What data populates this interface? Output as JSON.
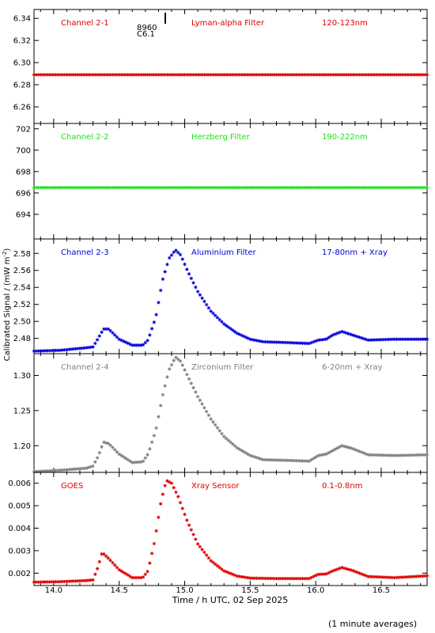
{
  "figure": {
    "y_axis_label": "Calibrated Signal / (mW m",
    "y_axis_label_sup": "-2",
    "y_axis_label_end": ")",
    "x_axis_label": "Time / h UTC, 02 Sep 2025",
    "footer": "(1 minute averages)",
    "flare_marker": {
      "number": "8960",
      "class": "C6.1",
      "time": 14.87
    }
  },
  "chart_data": [
    {
      "type": "scatter",
      "channel": "Channel 2-1",
      "filter": "Lyman-alpha Filter",
      "band": "120-123nm",
      "color": "#e00000",
      "xlim": [
        13.85,
        16.85
      ],
      "ylim": [
        6.245,
        6.348
      ],
      "yticks": [
        6.26,
        6.28,
        6.3,
        6.32,
        6.34
      ],
      "ytick_labels": [
        "6.26",
        "6.28",
        "6.30",
        "6.32",
        "6.34"
      ],
      "series": [
        {
          "values_knots": [
            [
              13.85,
              6.289
            ],
            [
              16.85,
              6.289
            ]
          ]
        }
      ]
    },
    {
      "type": "scatter",
      "channel": "Channel 2-2",
      "filter": "Herzberg Filter",
      "band": "190-222nm",
      "color": "#22dd22",
      "xlim": [
        13.85,
        16.85
      ],
      "ylim": [
        691.7,
        702.5
      ],
      "yticks": [
        694,
        696,
        698,
        700,
        702
      ],
      "ytick_labels": [
        "694",
        "696",
        "698",
        "700",
        "702"
      ],
      "series": [
        {
          "values_knots": [
            [
              13.85,
              696.5
            ],
            [
              16.85,
              696.5
            ]
          ]
        }
      ]
    },
    {
      "type": "scatter",
      "channel": "Channel 2-3",
      "filter": "Aluminium Filter",
      "band": "17-80nm + Xray",
      "color": "#0000dd",
      "xlim": [
        13.85,
        16.85
      ],
      "ylim": [
        2.462,
        2.597
      ],
      "yticks": [
        2.48,
        2.5,
        2.52,
        2.54,
        2.56,
        2.58
      ],
      "ytick_labels": [
        "2.48",
        "2.50",
        "2.52",
        "2.54",
        "2.56",
        "2.58"
      ],
      "series": [
        {
          "values_knots": [
            [
              13.85,
              2.465
            ],
            [
              14.05,
              2.466
            ],
            [
              14.25,
              2.469
            ],
            [
              14.3,
              2.47
            ],
            [
              14.34,
              2.48
            ],
            [
              14.38,
              2.491
            ],
            [
              14.42,
              2.491
            ],
            [
              14.5,
              2.479
            ],
            [
              14.6,
              2.472
            ],
            [
              14.68,
              2.472
            ],
            [
              14.72,
              2.478
            ],
            [
              14.78,
              2.505
            ],
            [
              14.83,
              2.548
            ],
            [
              14.88,
              2.574
            ],
            [
              14.93,
              2.584
            ],
            [
              14.97,
              2.578
            ],
            [
              15.02,
              2.56
            ],
            [
              15.1,
              2.535
            ],
            [
              15.2,
              2.512
            ],
            [
              15.3,
              2.497
            ],
            [
              15.4,
              2.486
            ],
            [
              15.5,
              2.479
            ],
            [
              15.6,
              2.476
            ],
            [
              15.8,
              2.475
            ],
            [
              15.95,
              2.474
            ],
            [
              16.02,
              2.478
            ],
            [
              16.08,
              2.479
            ],
            [
              16.13,
              2.484
            ],
            [
              16.2,
              2.488
            ],
            [
              16.28,
              2.484
            ],
            [
              16.4,
              2.478
            ],
            [
              16.6,
              2.479
            ],
            [
              16.85,
              2.479
            ]
          ]
        }
      ]
    },
    {
      "type": "scatter",
      "channel": "Channel 2-4",
      "filter": "Zirconium Filter",
      "band": "6-20nm + Xray",
      "color": "#808080",
      "xlim": [
        13.85,
        16.85
      ],
      "ylim": [
        1.162,
        1.331
      ],
      "yticks": [
        1.2,
        1.25,
        1.3
      ],
      "ytick_labels": [
        "1.20",
        "1.25",
        "1.30"
      ],
      "series": [
        {
          "values_knots": [
            [
              13.85,
              1.163
            ],
            [
              14.05,
              1.165
            ],
            [
              14.25,
              1.168
            ],
            [
              14.3,
              1.171
            ],
            [
              14.34,
              1.185
            ],
            [
              14.38,
              1.205
            ],
            [
              14.42,
              1.203
            ],
            [
              14.5,
              1.188
            ],
            [
              14.6,
              1.176
            ],
            [
              14.68,
              1.177
            ],
            [
              14.72,
              1.188
            ],
            [
              14.78,
              1.222
            ],
            [
              14.83,
              1.27
            ],
            [
              14.88,
              1.308
            ],
            [
              14.93,
              1.326
            ],
            [
              14.97,
              1.32
            ],
            [
              15.02,
              1.3
            ],
            [
              15.1,
              1.27
            ],
            [
              15.2,
              1.238
            ],
            [
              15.3,
              1.213
            ],
            [
              15.4,
              1.197
            ],
            [
              15.5,
              1.186
            ],
            [
              15.6,
              1.18
            ],
            [
              15.8,
              1.179
            ],
            [
              15.95,
              1.178
            ],
            [
              16.02,
              1.186
            ],
            [
              16.08,
              1.188
            ],
            [
              16.13,
              1.193
            ],
            [
              16.2,
              1.2
            ],
            [
              16.28,
              1.196
            ],
            [
              16.4,
              1.187
            ],
            [
              16.6,
              1.186
            ],
            [
              16.85,
              1.187
            ]
          ]
        }
      ]
    },
    {
      "type": "scatter",
      "channel": "GOES",
      "filter": "Xray Sensor",
      "band": "0.1-0.8nm",
      "color": "#e00000",
      "xlim": [
        13.85,
        16.85
      ],
      "ylim": [
        0.00145,
        0.00648
      ],
      "yticks": [
        0.002,
        0.003,
        0.004,
        0.005,
        0.006
      ],
      "ytick_labels": [
        "0.002",
        "0.003",
        "0.004",
        "0.005",
        "0.006"
      ],
      "series": [
        {
          "values_knots": [
            [
              13.85,
              0.0016
            ],
            [
              14.05,
              0.00162
            ],
            [
              14.25,
              0.00167
            ],
            [
              14.3,
              0.0017
            ],
            [
              14.34,
              0.0023
            ],
            [
              14.37,
              0.00292
            ],
            [
              14.42,
              0.00265
            ],
            [
              14.5,
              0.00215
            ],
            [
              14.6,
              0.0018
            ],
            [
              14.68,
              0.0018
            ],
            [
              14.72,
              0.0021
            ],
            [
              14.77,
              0.0034
            ],
            [
              14.82,
              0.0052
            ],
            [
              14.86,
              0.00612
            ],
            [
              14.9,
              0.006
            ],
            [
              14.95,
              0.0054
            ],
            [
              15.02,
              0.0043
            ],
            [
              15.1,
              0.0033
            ],
            [
              15.2,
              0.00255
            ],
            [
              15.3,
              0.0021
            ],
            [
              15.4,
              0.00187
            ],
            [
              15.5,
              0.00178
            ],
            [
              15.7,
              0.00176
            ],
            [
              15.95,
              0.00176
            ],
            [
              16.02,
              0.00195
            ],
            [
              16.08,
              0.00196
            ],
            [
              16.13,
              0.0021
            ],
            [
              16.2,
              0.00225
            ],
            [
              16.28,
              0.00212
            ],
            [
              16.4,
              0.00185
            ],
            [
              16.6,
              0.0018
            ],
            [
              16.85,
              0.00188
            ]
          ]
        }
      ]
    }
  ],
  "x_axis": {
    "ticks": [
      14.0,
      14.5,
      15.0,
      15.5,
      16.0,
      16.5
    ],
    "tick_labels": [
      "14.0",
      "14.5",
      "15.0",
      "15.5",
      "16.0",
      "16.5"
    ]
  }
}
